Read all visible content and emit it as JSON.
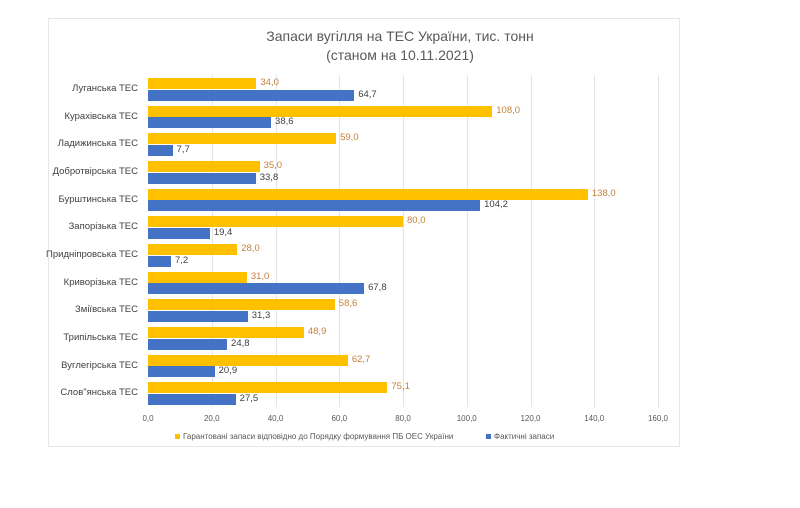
{
  "chart_data": {
    "type": "bar",
    "orientation": "horizontal",
    "title": "Запаси вугілля на ТЕС України, тис. тонн",
    "subtitle": "(станом на 10.11.2021)",
    "xlabel": "",
    "ylabel": "",
    "xlim": [
      0,
      160
    ],
    "x_ticks": [
      "0,0",
      "20,0",
      "40,0",
      "60,0",
      "80,0",
      "100,0",
      "120,0",
      "140,0",
      "160,0"
    ],
    "grid": true,
    "legend_position": "bottom",
    "categories": [
      "Луганська ТЕС",
      "Курахівська ТЕС",
      "Ладижинська ТЕС",
      "Добротвірська ТЕС",
      "Бурштинська ТЕС",
      "Запорізька ТЕС",
      "Придніпровська ТЕС",
      "Криворізька ТЕС",
      "Зміївська ТЕС",
      "Трипільська ТЕС",
      "Вуглегірська ТЕС",
      "Слов\"янська ТЕС"
    ],
    "series": [
      {
        "name": "Гарантовані запаси відповідно до Порядку формування ПБ ОЕС України",
        "color": "#ffc000",
        "values": [
          34.0,
          108.0,
          59.0,
          35.0,
          138.0,
          80.0,
          28.0,
          31.0,
          58.6,
          48.9,
          62.7,
          75.1
        ],
        "labels": [
          "34,0",
          "108,0",
          "59,0",
          "35,0",
          "138,0",
          "80,0",
          "28,0",
          "31,0",
          "58,6",
          "48,9",
          "62,7",
          "75,1"
        ]
      },
      {
        "name": "Фактичні запаси",
        "color": "#4472c4",
        "values": [
          64.7,
          38.6,
          7.7,
          33.8,
          104.2,
          19.4,
          7.2,
          67.8,
          31.3,
          24.8,
          20.9,
          27.5
        ],
        "labels": [
          "64,7",
          "38,6",
          "7,7",
          "33,8",
          "104,2",
          "19,4",
          "7,2",
          "67,8",
          "31,3",
          "24,8",
          "20,9",
          "27,5"
        ]
      }
    ]
  }
}
